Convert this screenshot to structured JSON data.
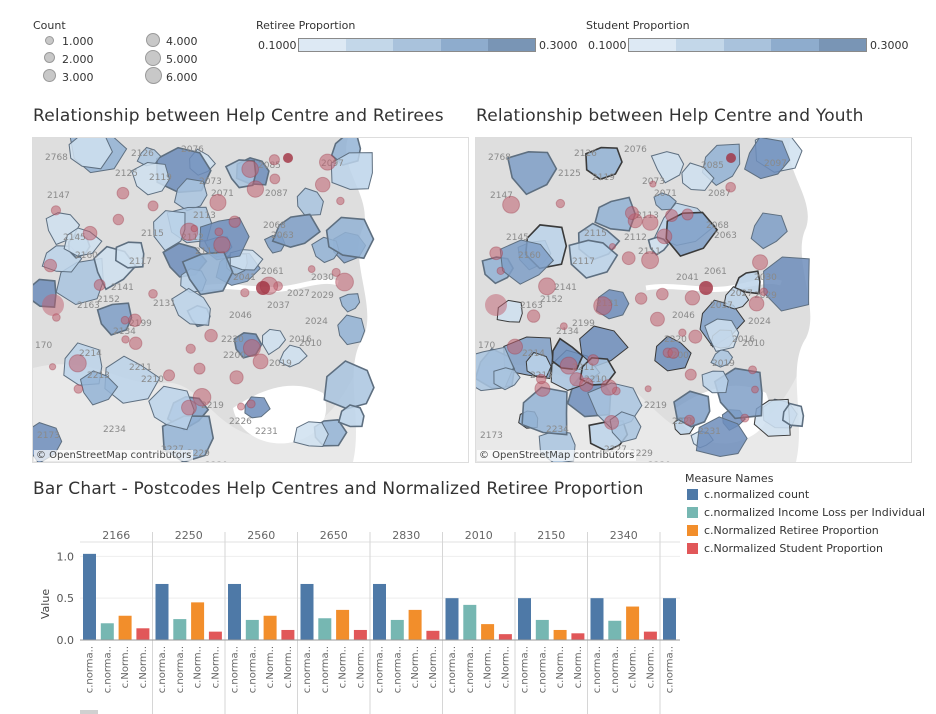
{
  "count_legend": {
    "title": "Count",
    "items": [
      "1.000",
      "2.000",
      "3.000",
      "4.000",
      "5.000",
      "6.000"
    ]
  },
  "retiree_legend": {
    "title": "Retiree Proportion",
    "min": "0.1000",
    "max": "0.3000"
  },
  "student_legend": {
    "title": "Student Proportion",
    "min": "0.1000",
    "max": "0.3000"
  },
  "gradient_colors": [
    "#dde9f4",
    "#c3d7e9",
    "#a9c2dc",
    "#8eaccd",
    "#7995b5"
  ],
  "maps": {
    "left_title": "Relationship between Help Centre and Retirees",
    "right_title": "Relationship between Help Centre and Youth",
    "attribution": "© OpenStreetMap contributors",
    "postcode_labels": [
      "2768",
      "2126",
      "2076",
      "2085",
      "2097",
      "2147",
      "2125",
      "2119",
      "2073",
      "2071",
      "2087",
      "2113",
      "2145",
      "2115",
      "2112",
      "2068",
      "2063",
      "2160",
      "2111",
      "2061",
      "2030",
      "2141",
      "2041",
      "2027",
      "2029",
      "2163",
      "2199",
      "2024",
      "170",
      "2214",
      "2211",
      "2019",
      "2213",
      "2210",
      "2219",
      "2173",
      "2234",
      "2231",
      "2227",
      "2229",
      "2226",
      "2230",
      "2134",
      "2220",
      "2200",
      "2016",
      "2131",
      "2046",
      "2037",
      "2010",
      "2152",
      "2117"
    ]
  },
  "bar_chart": {
    "title": "Bar Chart - Postcodes Help Centres and Normalized Retiree Proportion",
    "y_axis_label": "Value",
    "y_ticks": [
      "1.0",
      "0.5",
      "0.0"
    ],
    "x_labels": [
      "c.norma..",
      "c.norma..",
      "c.Norm..",
      "c.Norm.."
    ],
    "x_label_last": "c.norma..",
    "legend_title": "Measure Names",
    "measures": [
      {
        "name": "c.normalized count",
        "color": "#4e79a7"
      },
      {
        "name": "c.normalized Income Loss per Individual",
        "color": "#76b7b2"
      },
      {
        "name": "c.Normalized Retiree Proportion",
        "color": "#f28e2b"
      },
      {
        "name": "c.Normalized Student Proportion",
        "color": "#e15759"
      }
    ]
  },
  "chart_data": {
    "type": "bar",
    "title": "Bar Chart - Postcodes Help Centres and Normalized Retiree Proportion",
    "xlabel": "",
    "ylabel": "Value",
    "ylim": [
      0,
      1.1
    ],
    "categories": [
      "2166",
      "2250",
      "2560",
      "2650",
      "2830",
      "2010",
      "2150",
      "2340"
    ],
    "series": [
      {
        "name": "c.normalized count",
        "color": "#4e79a7",
        "values": [
          1.03,
          0.67,
          0.67,
          0.67,
          0.67,
          0.5,
          0.5,
          0.5
        ]
      },
      {
        "name": "c.normalized Income Loss per Individual",
        "color": "#76b7b2",
        "values": [
          0.2,
          0.25,
          0.24,
          0.26,
          0.24,
          0.42,
          0.24,
          0.23
        ]
      },
      {
        "name": "c.Normalized Retiree Proportion",
        "color": "#f28e2b",
        "values": [
          0.29,
          0.45,
          0.29,
          0.36,
          0.36,
          0.19,
          0.12,
          0.4
        ]
      },
      {
        "name": "c.Normalized Student Proportion",
        "color": "#e15759",
        "values": [
          0.14,
          0.1,
          0.12,
          0.12,
          0.11,
          0.07,
          0.08,
          0.1
        ]
      }
    ],
    "extra_partial": {
      "category": "",
      "series": "c.normalized count",
      "value": 0.5
    }
  }
}
